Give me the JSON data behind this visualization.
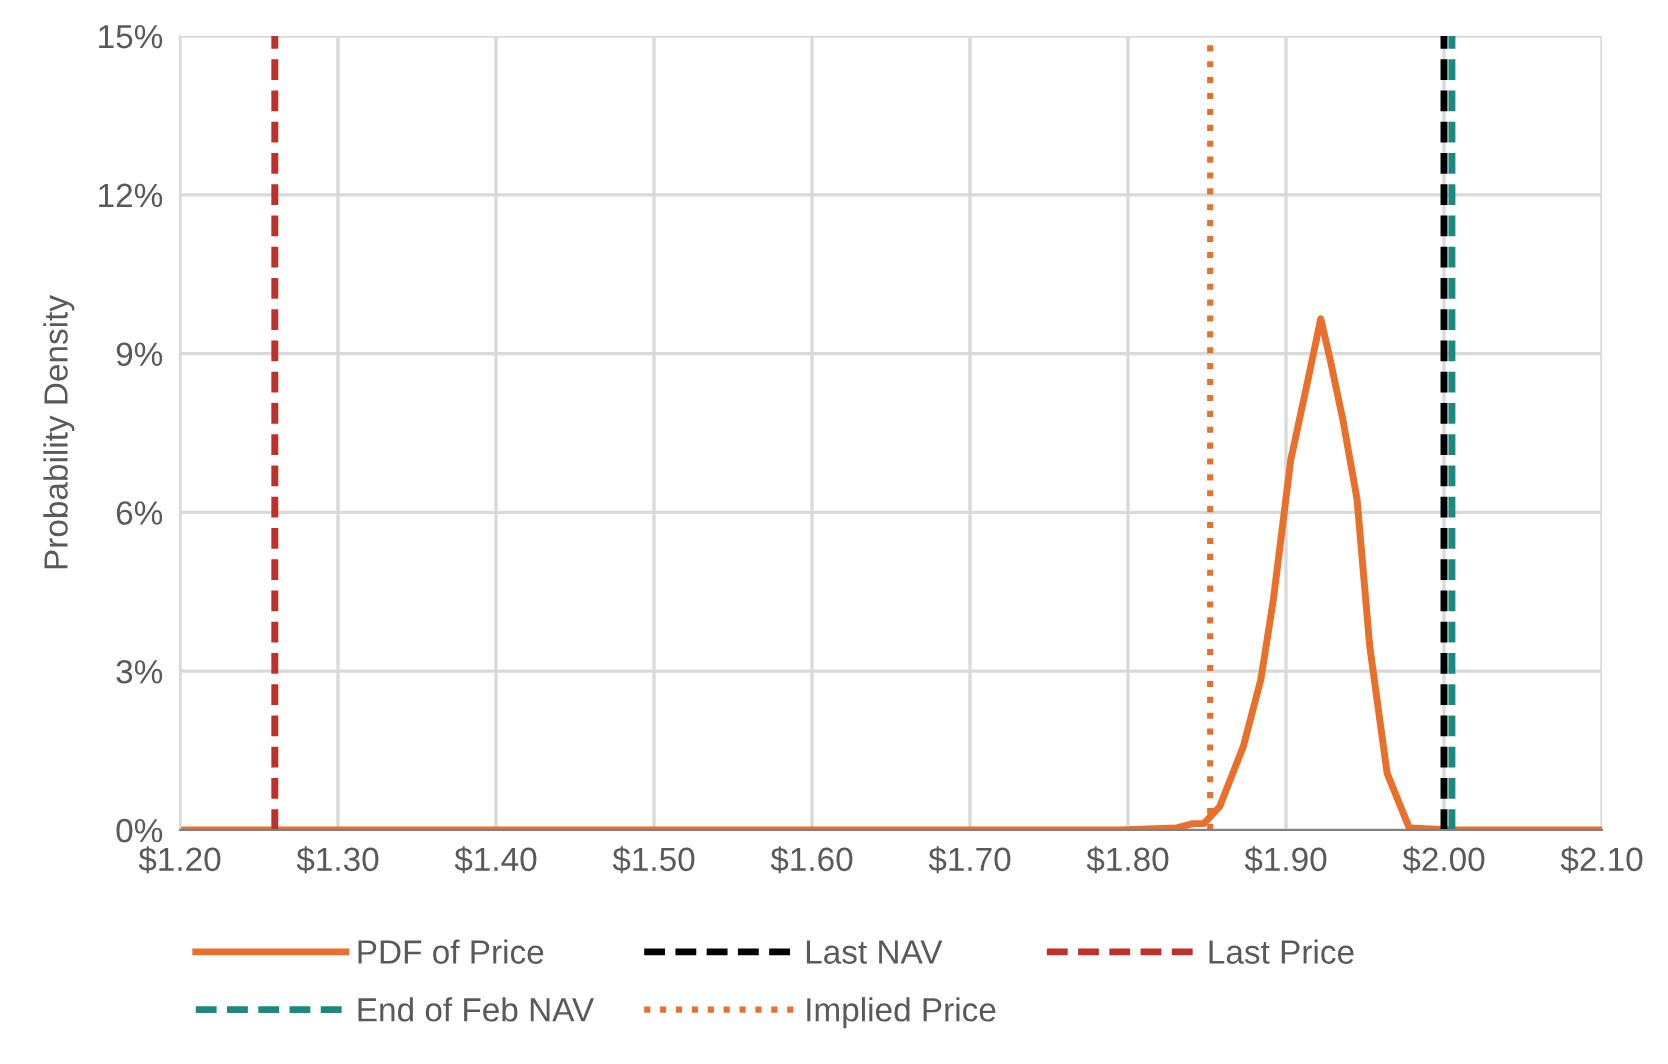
{
  "chart_data": {
    "type": "line",
    "ylabel": "Probability Density",
    "xlim": [
      1.2,
      2.1
    ],
    "xticks": [
      {
        "value": 1.2,
        "label": "$1.20"
      },
      {
        "value": 1.3,
        "label": "$1.30"
      },
      {
        "value": 1.4,
        "label": "$1.40"
      },
      {
        "value": 1.5,
        "label": "$1.50"
      },
      {
        "value": 1.6,
        "label": "$1.60"
      },
      {
        "value": 1.7,
        "label": "$1.70"
      },
      {
        "value": 1.8,
        "label": "$1.80"
      },
      {
        "value": 1.9,
        "label": "$1.90"
      },
      {
        "value": 2.0,
        "label": "$2.00"
      },
      {
        "value": 2.1,
        "label": "$2.10"
      }
    ],
    "ylim": [
      0,
      15
    ],
    "yticks": [
      {
        "value": 0,
        "label": "0%"
      },
      {
        "value": 3,
        "label": "3%"
      },
      {
        "value": 6,
        "label": "6%"
      },
      {
        "value": 9,
        "label": "9%"
      },
      {
        "value": 12,
        "label": "12%"
      },
      {
        "value": 15,
        "label": "15%"
      }
    ],
    "grid": true,
    "legend": "bottom",
    "marker": "none",
    "series": [
      {
        "name": "PDF of Price",
        "color": "#e8702a",
        "line_style": "solid",
        "x": [
          1.2,
          1.795,
          1.831,
          1.841,
          1.848,
          1.858,
          1.873,
          1.884,
          1.892,
          1.903,
          1.913,
          1.922,
          1.928,
          1.936,
          1.945,
          1.953,
          1.964,
          1.978,
          2.006,
          2.1
        ],
        "values": [
          0,
          0,
          0.04,
          0.12,
          0.12,
          0.44,
          1.58,
          2.83,
          4.35,
          6.99,
          8.38,
          9.66,
          8.88,
          7.75,
          6.24,
          3.47,
          1.07,
          0.04,
          0,
          0
        ]
      },
      {
        "name": "Last NAV",
        "color": "#000000",
        "line_style": "dashed",
        "x": [
          2.0,
          2.0
        ],
        "values": [
          0,
          15
        ]
      },
      {
        "name": "Last Price",
        "color": "#c0302b",
        "line_style": "dashed",
        "x": [
          1.26,
          1.26
        ],
        "values": [
          0,
          15
        ]
      },
      {
        "name": "End of Feb NAV",
        "color": "#1a8a80",
        "line_style": "dashed",
        "x": [
          2.005,
          2.005
        ],
        "values": [
          0,
          15
        ]
      },
      {
        "name": "Implied Price",
        "color": "#e8702a",
        "line_style": "dotted",
        "x": [
          1.852,
          1.852
        ],
        "values": [
          0,
          15
        ]
      }
    ]
  }
}
